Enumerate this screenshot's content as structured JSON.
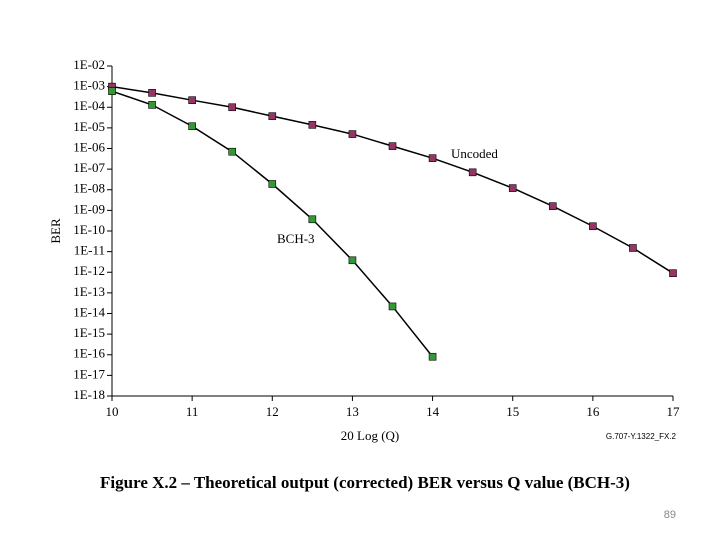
{
  "chart_data": {
    "type": "line",
    "caption": "Figure X.2 – Theoretical output (corrected) BER versus Q value (BCH-3)",
    "xlabel": "20 Log (Q)",
    "ylabel": "BER",
    "figure_id": "G.707-Y.1322_FX.2",
    "page_number": "89",
    "annotations": [
      "Uncoded",
      "BCH-3"
    ],
    "log_y": true,
    "xlim": [
      10,
      17
    ],
    "xticks": [
      10,
      11,
      12,
      13,
      14,
      15,
      16,
      17
    ],
    "ylim": [
      1e-18,
      0.01
    ],
    "yticks": [
      {
        "value": 0.01,
        "label": "1E-02"
      },
      {
        "value": 0.001,
        "label": "1E-03"
      },
      {
        "value": 0.0001,
        "label": "1E-04"
      },
      {
        "value": 1e-05,
        "label": "1E-05"
      },
      {
        "value": 1e-06,
        "label": "1E-06"
      },
      {
        "value": 1e-07,
        "label": "1E-07"
      },
      {
        "value": 1e-08,
        "label": "1E-08"
      },
      {
        "value": 1e-09,
        "label": "1E-09"
      },
      {
        "value": 1e-10,
        "label": "1E-10"
      },
      {
        "value": 1e-11,
        "label": "1E-11"
      },
      {
        "value": 1e-12,
        "label": "1E-12"
      },
      {
        "value": 1e-13,
        "label": "1E-13"
      },
      {
        "value": 1e-14,
        "label": "1E-14"
      },
      {
        "value": 1e-15,
        "label": "1E-15"
      },
      {
        "value": 1e-16,
        "label": "1E-16"
      },
      {
        "value": 1e-17,
        "label": "1E-17"
      },
      {
        "value": 1e-18,
        "label": "1E-18"
      }
    ],
    "series": [
      {
        "name": "Uncoded",
        "color": "#993366",
        "x": [
          10,
          10.5,
          11,
          11.5,
          12,
          12.5,
          13,
          13.5,
          14,
          14.5,
          15,
          15.5,
          16,
          16.5,
          17
        ],
        "values": [
          0.001,
          0.0005,
          0.00022,
          0.0001,
          3.7e-05,
          1.4e-05,
          5e-06,
          1.3e-06,
          3.4e-07,
          7e-08,
          1.2e-08,
          1.6e-09,
          1.7e-10,
          1.5e-11,
          9e-13
        ]
      },
      {
        "name": "BCH-3",
        "color": "#339933",
        "x": [
          10,
          10.5,
          11,
          11.5,
          12,
          12.5,
          13,
          13.5,
          14
        ],
        "values": [
          0.0006,
          0.00013,
          1.2e-05,
          7e-07,
          1.9e-08,
          3.7e-10,
          3.8e-12,
          2.2e-14,
          8e-17
        ]
      }
    ]
  }
}
